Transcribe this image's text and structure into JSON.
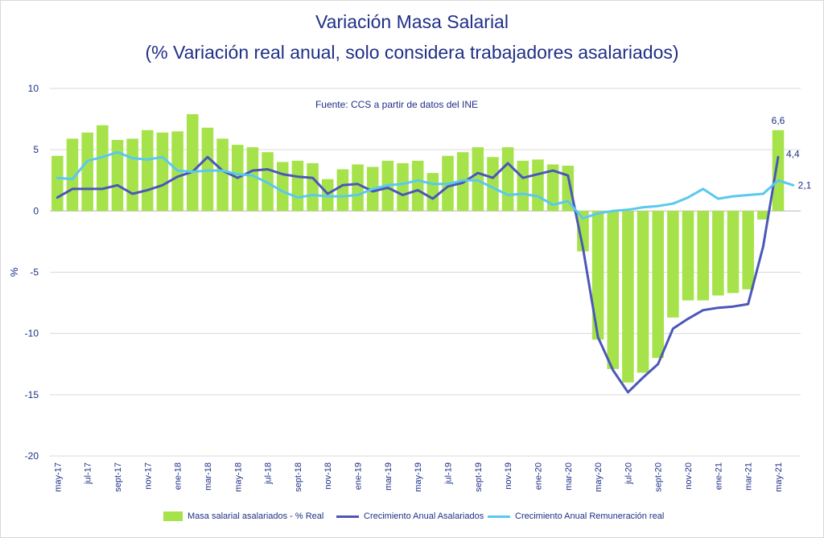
{
  "title": "Variación Masa Salarial",
  "subtitle": "(% Variación real anual, solo considera trabajadores asalariados)",
  "colors": {
    "bars": "#a6e34a",
    "line1": "#4b57b8",
    "line2": "#5bc8ef",
    "text": "#1f2f87",
    "grid": "#d9d9d9"
  },
  "chart_data": {
    "type": "bar",
    "source_note": "Fuente: CCS a partir de datos del INE",
    "ylabel": "%",
    "ylim": [
      -20,
      10
    ],
    "yticks": [
      10,
      5,
      0,
      -5,
      -10,
      -15,
      -20
    ],
    "grid": true,
    "legend_position": "bottom",
    "x_tick_labels": [
      "may-17",
      "jul-17",
      "sept-17",
      "nov-17",
      "ene-18",
      "mar-18",
      "may-18",
      "jul-18",
      "sept-18",
      "nov-18",
      "ene-19",
      "mar-19",
      "may-19",
      "jul-19",
      "sept-19",
      "nov-19",
      "ene-20",
      "mar-20",
      "may-20",
      "jul-20",
      "sept-20",
      "nov-20",
      "ene-21",
      "mar-21",
      "may-21"
    ],
    "series": [
      {
        "name": "Masa salarial asalariados - % Real",
        "type": "bar",
        "values": [
          4.5,
          5.9,
          6.4,
          7.0,
          5.8,
          5.9,
          6.6,
          6.4,
          6.5,
          7.9,
          6.8,
          5.9,
          5.4,
          5.2,
          4.8,
          4.0,
          4.1,
          3.9,
          2.6,
          3.4,
          3.8,
          3.6,
          4.1,
          3.9,
          4.1,
          3.1,
          4.5,
          4.8,
          5.2,
          4.4,
          5.2,
          4.1,
          4.2,
          3.8,
          3.7,
          -3.3,
          -10.5,
          -12.9,
          -14.0,
          -13.2,
          -12.0,
          -8.7,
          -7.3,
          -7.3,
          -6.9,
          -6.7,
          -6.4,
          -0.7,
          6.6
        ]
      },
      {
        "name": "Crecimiento Anual Asalariados",
        "type": "line",
        "values": [
          1.1,
          1.8,
          1.8,
          1.8,
          2.1,
          1.4,
          1.7,
          2.1,
          2.8,
          3.2,
          4.4,
          3.3,
          2.7,
          3.3,
          3.4,
          3.0,
          2.8,
          2.7,
          1.4,
          2.1,
          2.2,
          1.6,
          1.9,
          1.3,
          1.7,
          1.0,
          2.0,
          2.3,
          3.1,
          2.7,
          3.9,
          2.7,
          3.0,
          3.3,
          2.9,
          -3.0,
          -10.3,
          -13.0,
          -14.8,
          -13.6,
          -12.5,
          -9.6,
          -8.8,
          -8.1,
          -7.9,
          -7.8,
          -7.6,
          -2.9,
          4.4
        ]
      },
      {
        "name": "Crecimiento Anual Remuneración real",
        "type": "line",
        "values": [
          2.7,
          2.6,
          4.1,
          4.4,
          4.8,
          4.3,
          4.2,
          4.4,
          3.3,
          3.2,
          3.3,
          3.3,
          3.0,
          2.9,
          2.3,
          1.6,
          1.1,
          1.3,
          1.2,
          1.2,
          1.3,
          1.8,
          2.1,
          2.2,
          2.5,
          2.2,
          2.2,
          2.5,
          2.5,
          1.9,
          1.3,
          1.4,
          1.2,
          0.5,
          0.8,
          -0.6,
          -0.2,
          0.0,
          0.1,
          0.3,
          0.4,
          0.6,
          1.1,
          1.8,
          1.0,
          1.2,
          1.3,
          1.4,
          2.5,
          2.1
        ]
      }
    ],
    "data_labels": [
      {
        "series": 0,
        "index": 48,
        "text": "6,6"
      },
      {
        "series": 1,
        "index": 48,
        "text": "4,4"
      },
      {
        "series": 2,
        "index": 49,
        "text": "2,1"
      }
    ]
  }
}
